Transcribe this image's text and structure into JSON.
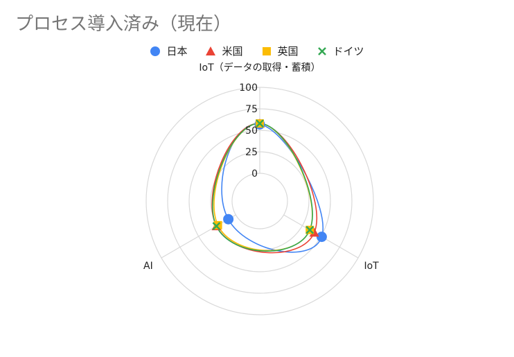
{
  "chart_data": {
    "type": "radar",
    "title": "プロセス導入済み（現在）",
    "axes": [
      "IoT（データの取得・蓄積）",
      "IoT",
      "AI"
    ],
    "series": [
      {
        "name": "日本",
        "values": [
          57,
          51,
          10
        ],
        "color": "#4285F4",
        "marker": "circle"
      },
      {
        "name": "米国",
        "values": [
          58,
          41,
          26
        ],
        "color": "#EA4335",
        "marker": "triangle"
      },
      {
        "name": "英国",
        "values": [
          58,
          35,
          24
        ],
        "color": "#FBBC04",
        "marker": "square"
      },
      {
        "name": "ドイツ",
        "values": [
          58,
          35,
          26
        ],
        "color": "#34A853",
        "marker": "cross"
      }
    ],
    "r_ticks": [
      "0",
      "25",
      "50",
      "75",
      "100"
    ],
    "r_range": [
      0,
      100
    ],
    "legend_position": "top",
    "grid": true
  }
}
